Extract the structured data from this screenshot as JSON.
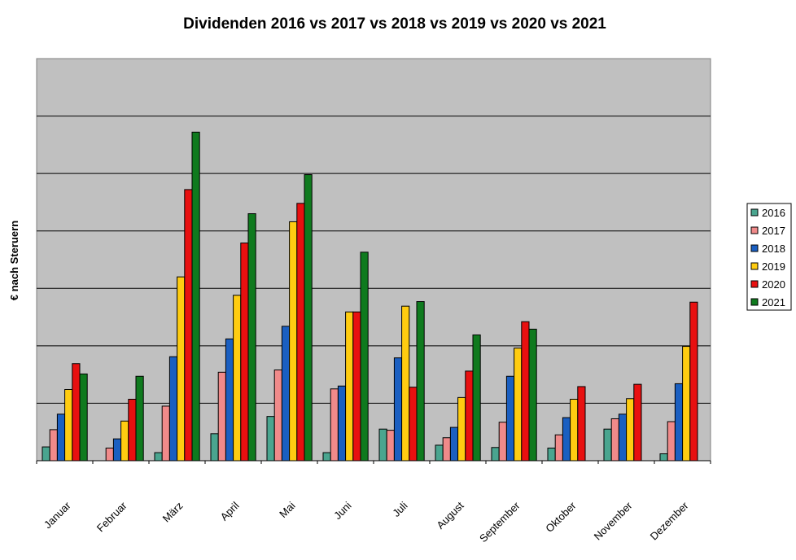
{
  "chart_data": {
    "type": "bar",
    "title": "Dividenden 2016 vs 2017 vs 2018 vs 2019 vs 2020 vs 2021",
    "xlabel": "",
    "ylabel": "€ nach Steruern",
    "ylim": [
      0,
      7
    ],
    "grid": true,
    "legend_position": "right",
    "categories": [
      "Januar",
      "Februar",
      "März",
      "April",
      "Mai",
      "Juni",
      "Juli",
      "August",
      "September",
      "Oktober",
      "November",
      "Dezember"
    ],
    "series": [
      {
        "name": "2016",
        "color": "#4aa58f",
        "values": [
          0.24,
          0,
          0.14,
          0.47,
          0.77,
          0.14,
          0.55,
          0.27,
          0.23,
          0.22,
          0.55,
          0.12
        ]
      },
      {
        "name": "2017",
        "color": "#f08a8a",
        "values": [
          0.54,
          0.22,
          0.95,
          1.54,
          1.58,
          1.25,
          0.53,
          0.4,
          0.67,
          0.45,
          0.73,
          0.68
        ]
      },
      {
        "name": "2018",
        "color": "#1a5fc1",
        "values": [
          0.81,
          0.38,
          1.81,
          2.12,
          2.34,
          1.3,
          1.79,
          0.58,
          1.47,
          0.75,
          0.81,
          1.34
        ]
      },
      {
        "name": "2019",
        "color": "#ffcc11",
        "values": [
          1.24,
          0.69,
          3.2,
          2.88,
          4.16,
          2.59,
          2.69,
          1.1,
          1.96,
          1.07,
          1.08,
          1.99
        ]
      },
      {
        "name": "2020",
        "color": "#e81010",
        "values": [
          1.69,
          1.07,
          4.72,
          3.79,
          4.48,
          2.59,
          1.28,
          1.56,
          2.42,
          1.29,
          1.33,
          2.76
        ]
      },
      {
        "name": "2021",
        "color": "#0f7a1e",
        "values": [
          1.51,
          1.47,
          5.72,
          4.3,
          4.98,
          3.63,
          2.77,
          2.19,
          2.29,
          0,
          0,
          0
        ]
      }
    ]
  }
}
